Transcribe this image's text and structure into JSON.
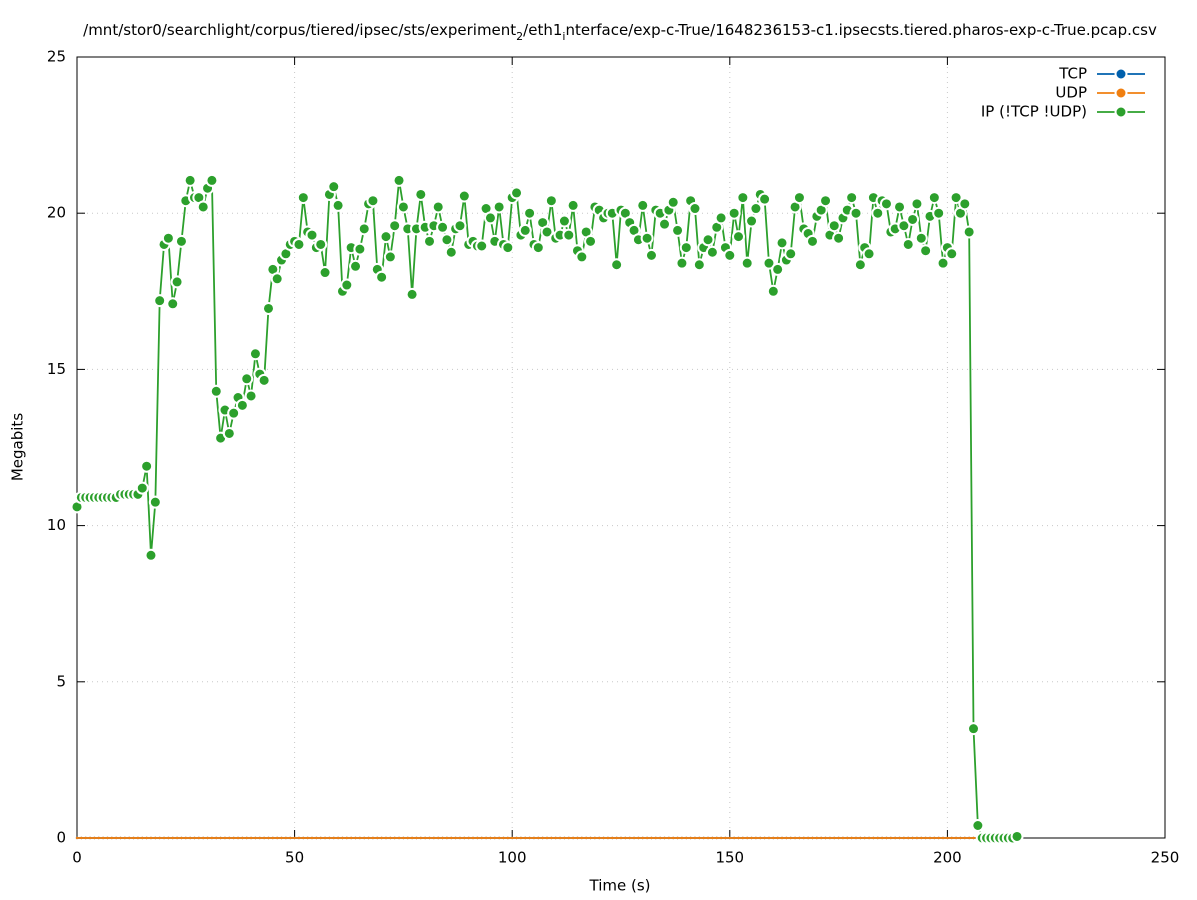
{
  "chart_data": {
    "type": "line",
    "title": [
      "/mnt/stor0/searchlight/corpus/tiered/ipsec/sts/experiment",
      "2",
      "/eth1",
      "i",
      "nterface/exp-c-True/1648236153-c1.ipsecsts.tiered.pharos-exp-c-True.pcap.csv"
    ],
    "xlabel": "Time (s)",
    "ylabel": "Megabits",
    "xlim": [
      0,
      250
    ],
    "xticks": [
      0,
      50,
      100,
      150,
      200,
      250
    ],
    "ylim": [
      0,
      25
    ],
    "yticks": [
      0,
      5,
      10,
      15,
      20,
      25
    ],
    "grid": true,
    "legend": "top-right",
    "x": [
      0,
      1,
      2,
      3,
      4,
      5,
      6,
      7,
      8,
      9,
      10,
      11,
      12,
      13,
      14,
      15,
      16,
      17,
      18,
      19,
      20,
      21,
      22,
      23,
      24,
      25,
      26,
      27,
      28,
      29,
      30,
      31,
      32,
      33,
      34,
      35,
      36,
      37,
      38,
      39,
      40,
      41,
      42,
      43,
      44,
      45,
      46,
      47,
      48,
      49,
      50,
      51,
      52,
      53,
      54,
      55,
      56,
      57,
      58,
      59,
      60,
      61,
      62,
      63,
      64,
      65,
      66,
      67,
      68,
      69,
      70,
      71,
      72,
      73,
      74,
      75,
      76,
      77,
      78,
      79,
      80,
      81,
      82,
      83,
      84,
      85,
      86,
      87,
      88,
      89,
      90,
      91,
      92,
      93,
      94,
      95,
      96,
      97,
      98,
      99,
      100,
      101,
      102,
      103,
      104,
      105,
      106,
      107,
      108,
      109,
      110,
      111,
      112,
      113,
      114,
      115,
      116,
      117,
      118,
      119,
      120,
      121,
      122,
      123,
      124,
      125,
      126,
      127,
      128,
      129,
      130,
      131,
      132,
      133,
      134,
      135,
      136,
      137,
      138,
      139,
      140,
      141,
      142,
      143,
      144,
      145,
      146,
      147,
      148,
      149,
      150,
      151,
      152,
      153,
      154,
      155,
      156,
      157,
      158,
      159,
      160,
      161,
      162,
      163,
      164,
      165,
      166,
      167,
      168,
      169,
      170,
      171,
      172,
      173,
      174,
      175,
      176,
      177,
      178,
      179,
      180,
      181,
      182,
      183,
      184,
      185,
      186,
      187,
      188,
      189,
      190,
      191,
      192,
      193,
      194,
      195,
      196,
      197,
      198,
      199,
      200,
      201,
      202,
      203,
      204,
      205,
      206,
      207,
      208,
      209,
      210,
      211,
      212,
      213,
      214,
      215,
      216
    ],
    "series": [
      {
        "name": "TCP",
        "color": "#0060ad",
        "values": [
          0,
          0,
          0,
          0,
          0,
          0,
          0,
          0,
          0,
          0,
          0,
          0,
          0,
          0,
          0,
          0,
          0,
          0,
          0,
          0,
          0,
          0,
          0,
          0,
          0,
          0,
          0,
          0,
          0,
          0,
          0,
          0,
          0,
          0,
          0,
          0,
          0,
          0,
          0,
          0,
          0,
          0,
          0,
          0,
          0,
          0,
          0,
          0,
          0,
          0,
          0,
          0,
          0,
          0,
          0,
          0,
          0,
          0,
          0,
          0,
          0,
          0,
          0,
          0,
          0,
          0,
          0,
          0,
          0,
          0,
          0,
          0,
          0,
          0,
          0,
          0,
          0,
          0,
          0,
          0,
          0,
          0,
          0,
          0,
          0,
          0,
          0,
          0,
          0,
          0,
          0,
          0,
          0,
          0,
          0,
          0,
          0,
          0,
          0,
          0,
          0,
          0,
          0,
          0,
          0,
          0,
          0,
          0,
          0,
          0,
          0,
          0,
          0,
          0,
          0,
          0,
          0,
          0,
          0,
          0,
          0,
          0,
          0,
          0,
          0,
          0,
          0,
          0,
          0,
          0,
          0,
          0,
          0,
          0,
          0,
          0,
          0,
          0,
          0,
          0,
          0,
          0,
          0,
          0,
          0,
          0,
          0,
          0,
          0,
          0,
          0,
          0,
          0,
          0,
          0,
          0,
          0,
          0,
          0,
          0,
          0,
          0,
          0,
          0,
          0,
          0,
          0,
          0,
          0,
          0,
          0,
          0,
          0,
          0,
          0,
          0,
          0,
          0,
          0,
          0,
          0,
          0,
          0,
          0,
          0,
          0,
          0,
          0,
          0,
          0,
          0,
          0,
          0,
          0,
          0,
          0,
          0,
          0,
          0,
          0,
          0,
          0,
          0,
          0,
          0,
          0,
          0,
          0,
          0,
          0,
          0,
          0,
          0,
          0,
          0,
          0,
          0
        ]
      },
      {
        "name": "UDP",
        "color": "#f07f10",
        "values": [
          0,
          0,
          0,
          0,
          0,
          0,
          0,
          0,
          0,
          0,
          0,
          0,
          0,
          0,
          0,
          0,
          0,
          0,
          0,
          0,
          0,
          0,
          0,
          0,
          0,
          0,
          0,
          0,
          0,
          0,
          0,
          0,
          0,
          0,
          0,
          0,
          0,
          0,
          0,
          0,
          0,
          0,
          0,
          0,
          0,
          0,
          0,
          0,
          0,
          0,
          0,
          0,
          0,
          0,
          0,
          0,
          0,
          0,
          0,
          0,
          0,
          0,
          0,
          0,
          0,
          0,
          0,
          0,
          0,
          0,
          0,
          0,
          0,
          0,
          0,
          0,
          0,
          0,
          0,
          0,
          0,
          0,
          0,
          0,
          0,
          0,
          0,
          0,
          0,
          0,
          0,
          0,
          0,
          0,
          0,
          0,
          0,
          0,
          0,
          0,
          0,
          0,
          0,
          0,
          0,
          0,
          0,
          0,
          0,
          0,
          0,
          0,
          0,
          0,
          0,
          0,
          0,
          0,
          0,
          0,
          0,
          0,
          0,
          0,
          0,
          0,
          0,
          0,
          0,
          0,
          0,
          0,
          0,
          0,
          0,
          0,
          0,
          0,
          0,
          0,
          0,
          0,
          0,
          0,
          0,
          0,
          0,
          0,
          0,
          0,
          0,
          0,
          0,
          0,
          0,
          0,
          0,
          0,
          0,
          0,
          0,
          0,
          0,
          0,
          0,
          0,
          0,
          0,
          0,
          0,
          0,
          0,
          0,
          0,
          0,
          0,
          0,
          0,
          0,
          0,
          0,
          0,
          0,
          0,
          0,
          0,
          0,
          0,
          0,
          0,
          0,
          0,
          0,
          0,
          0,
          0,
          0,
          0,
          0,
          0,
          0,
          0,
          0,
          0,
          0,
          0,
          0,
          0,
          0,
          0,
          0,
          0,
          0,
          0,
          0,
          0,
          0
        ]
      },
      {
        "name": "IP (!TCP  !UDP)",
        "color": "#2ca02c",
        "values": [
          10.6,
          10.9,
          10.9,
          10.9,
          10.9,
          10.9,
          10.9,
          10.9,
          10.9,
          10.9,
          11.0,
          11.0,
          11.0,
          11.0,
          11.0,
          11.2,
          11.9,
          9.05,
          10.75,
          17.2,
          19.0,
          19.2,
          17.1,
          17.8,
          19.1,
          20.4,
          21.05,
          20.5,
          20.5,
          20.2,
          20.8,
          21.05,
          14.3,
          12.8,
          13.7,
          12.95,
          13.6,
          14.1,
          13.85,
          14.7,
          14.15,
          15.5,
          14.85,
          14.65,
          16.95,
          18.2,
          17.9,
          18.5,
          18.7,
          19.0,
          19.1,
          19.0,
          20.5,
          19.4,
          19.3,
          18.9,
          19.0,
          18.1,
          20.6,
          20.85,
          20.25,
          17.5,
          17.7,
          18.9,
          18.3,
          18.85,
          19.5,
          20.3,
          20.4,
          18.2,
          17.95,
          19.25,
          18.6,
          19.6,
          21.05,
          20.2,
          19.5,
          17.4,
          19.5,
          20.6,
          19.55,
          19.1,
          19.6,
          20.2,
          19.55,
          19.15,
          18.75,
          19.5,
          19.6,
          20.55,
          19.0,
          19.1,
          18.95,
          18.95,
          20.15,
          19.85,
          19.1,
          20.2,
          19.0,
          18.9,
          20.5,
          20.65,
          19.3,
          19.45,
          20.0,
          19.0,
          18.9,
          19.7,
          19.4,
          20.4,
          19.2,
          19.3,
          19.75,
          19.3,
          20.25,
          18.8,
          18.6,
          19.4,
          19.1,
          20.2,
          20.1,
          19.85,
          20.0,
          20.0,
          18.35,
          20.1,
          20.0,
          19.7,
          19.45,
          19.15,
          20.25,
          19.2,
          18.65,
          20.1,
          20.0,
          19.65,
          20.1,
          20.35,
          19.45,
          18.4,
          18.9,
          20.4,
          20.15,
          18.35,
          18.9,
          19.15,
          18.75,
          19.55,
          19.85,
          18.9,
          18.65,
          20.0,
          19.25,
          20.5,
          18.4,
          19.75,
          20.15,
          20.6,
          20.45,
          18.4,
          17.5,
          18.2,
          19.05,
          18.5,
          18.7,
          20.2,
          20.5,
          19.5,
          19.35,
          19.1,
          19.9,
          20.1,
          20.4,
          19.3,
          19.6,
          19.2,
          19.85,
          20.1,
          20.5,
          20.0,
          18.35,
          18.9,
          18.7,
          20.5,
          20.0,
          20.4,
          20.3,
          19.4,
          19.5,
          20.2,
          19.6,
          19.0,
          19.8,
          20.3,
          19.2,
          18.8,
          19.9,
          20.5,
          20.0,
          18.4,
          18.9,
          18.7,
          20.5,
          20.0,
          20.3,
          19.4,
          3.5,
          0.4,
          0,
          0,
          0,
          0,
          0,
          0,
          0,
          0,
          0.05
        ]
      }
    ]
  }
}
